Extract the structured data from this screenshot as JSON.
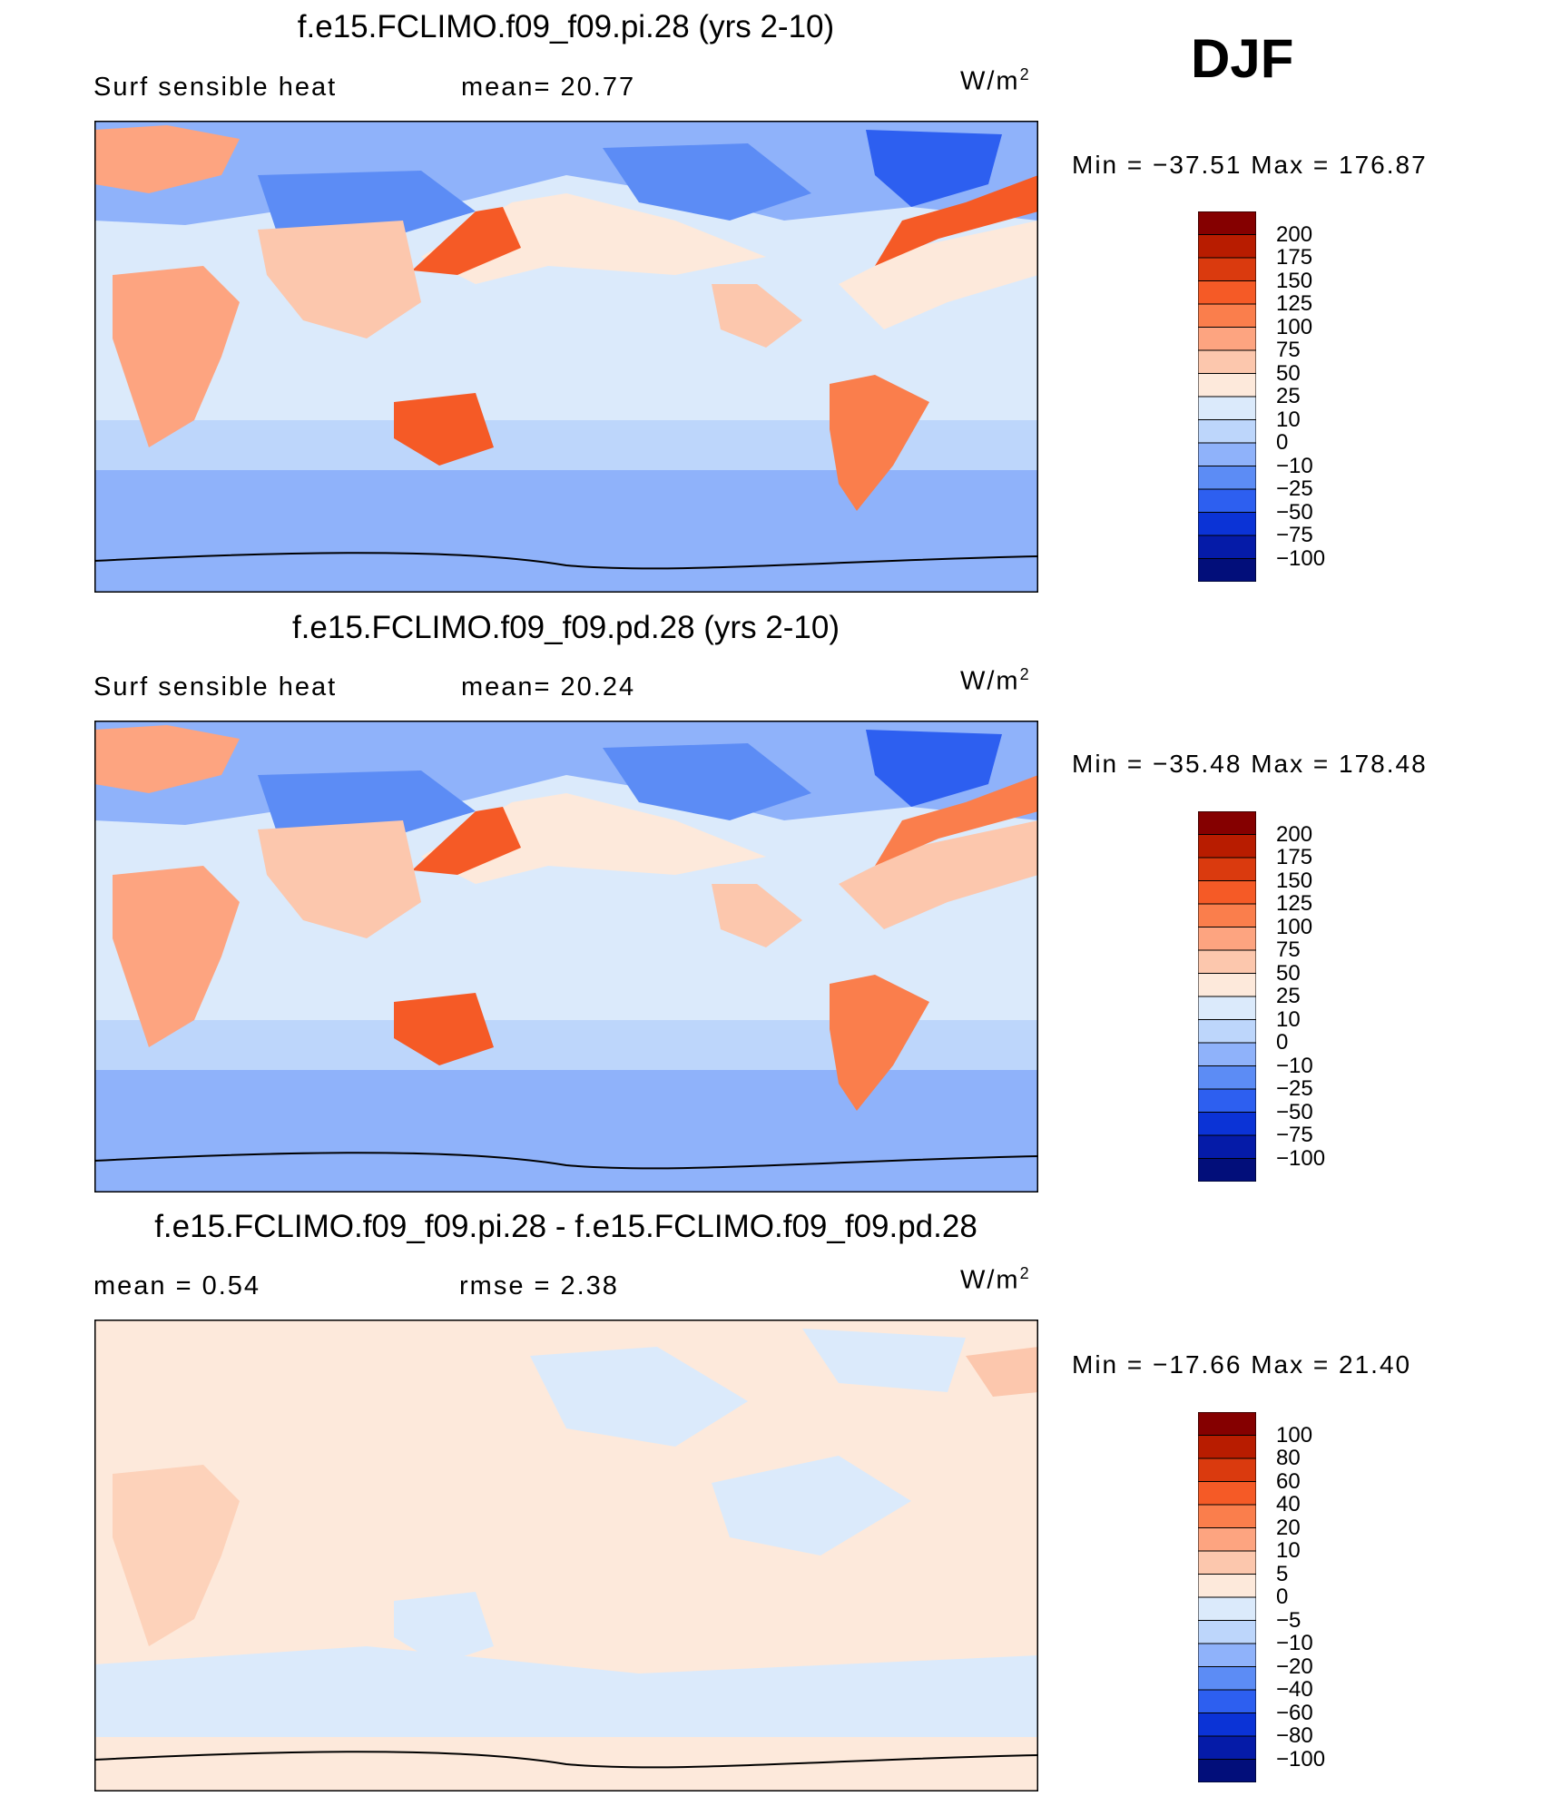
{
  "season": "DJF",
  "panels": [
    {
      "title": "f.e15.FCLIMO.f09_f09.pi.28 (yrs 2-10)",
      "left_label": "Surf  sensible  heat",
      "center_label": "mean=   20.77",
      "units": "W/m",
      "units_sup": "2",
      "minmax": "Min  =  −37.51  Max  =  176.87",
      "colorbar": {
        "labels": [
          "200",
          "175",
          "150",
          "125",
          "100",
          "75",
          "50",
          "25",
          "10",
          "0",
          "−10",
          "−25",
          "−50",
          "−75",
          "−100"
        ],
        "colors": [
          "#850000",
          "#b81c00",
          "#da3a0e",
          "#f55a26",
          "#fa7e4c",
          "#fda480",
          "#fcc7ad",
          "#fde9db",
          "#dbeafb",
          "#bdd6fb",
          "#8fb2fa",
          "#5c8cf5",
          "#2d5ff0",
          "#0b33d6",
          "#051ba8",
          "#020e7a"
        ]
      }
    },
    {
      "title": "f.e15.FCLIMO.f09_f09.pd.28 (yrs 2-10)",
      "left_label": "Surf  sensible  heat",
      "center_label": "mean=   20.24",
      "units": "W/m",
      "units_sup": "2",
      "minmax": "Min  =  −35.48  Max  =  178.48",
      "colorbar": {
        "labels": [
          "200",
          "175",
          "150",
          "125",
          "100",
          "75",
          "50",
          "25",
          "10",
          "0",
          "−10",
          "−25",
          "−50",
          "−75",
          "−100"
        ],
        "colors": [
          "#850000",
          "#b81c00",
          "#da3a0e",
          "#f55a26",
          "#fa7e4c",
          "#fda480",
          "#fcc7ad",
          "#fde9db",
          "#dbeafb",
          "#bdd6fb",
          "#8fb2fa",
          "#5c8cf5",
          "#2d5ff0",
          "#0b33d6",
          "#051ba8",
          "#020e7a"
        ]
      }
    },
    {
      "title": "f.e15.FCLIMO.f09_f09.pi.28 - f.e15.FCLIMO.f09_f09.pd.28",
      "left_label": "mean  =     0.54",
      "center_label": "rmse  =     2.38",
      "units": "W/m",
      "units_sup": "2",
      "minmax": "Min  =  −17.66  Max  =   21.40",
      "colorbar": {
        "labels": [
          "100",
          "80",
          "60",
          "40",
          "20",
          "10",
          "5",
          "0",
          "−5",
          "−10",
          "−20",
          "−40",
          "−60",
          "−80",
          "−100"
        ],
        "colors": [
          "#850000",
          "#b81c00",
          "#da3a0e",
          "#f55a26",
          "#fa7e4c",
          "#fda480",
          "#fcc7ad",
          "#fde9db",
          "#dbeafb",
          "#bdd6fb",
          "#8fb2fa",
          "#5c8cf5",
          "#2d5ff0",
          "#0b33d6",
          "#051ba8",
          "#020e7a"
        ]
      }
    }
  ]
}
